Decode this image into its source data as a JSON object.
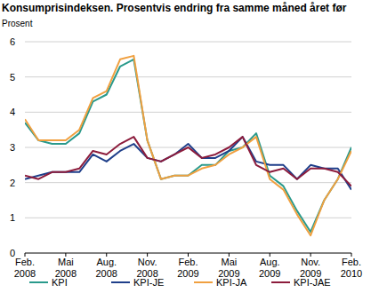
{
  "chart_data": {
    "type": "line",
    "title": "Konsumprisindeksen. Prosentvis endring fra samme måned året før",
    "y_label": "Prosent",
    "categories": [
      "Feb. 2008",
      null,
      null,
      "Mai 2008",
      null,
      null,
      "Aug. 2008",
      null,
      null,
      "Nov. 2008",
      null,
      null,
      "Feb. 2009",
      null,
      null,
      "Mai 2009",
      null,
      null,
      "Aug. 2009",
      null,
      null,
      "Nov. 2009",
      null,
      null,
      "Feb. 2010"
    ],
    "series": [
      {
        "name": "KPI",
        "color": "#2a9a8c",
        "values": [
          3.7,
          3.2,
          3.1,
          3.1,
          3.4,
          4.3,
          4.5,
          5.3,
          5.5,
          3.2,
          2.1,
          2.2,
          2.2,
          2.5,
          2.5,
          2.9,
          3.0,
          3.4,
          2.2,
          1.9,
          1.2,
          0.6,
          1.5,
          2.1,
          3.0
        ]
      },
      {
        "name": "KPI-JE",
        "color": "#1f3f8a",
        "values": [
          2.1,
          2.2,
          2.3,
          2.3,
          2.3,
          2.8,
          2.6,
          2.9,
          3.1,
          2.7,
          2.6,
          2.8,
          3.1,
          2.7,
          2.7,
          2.9,
          3.3,
          2.6,
          2.5,
          2.5,
          2.1,
          2.5,
          2.4,
          2.4,
          1.8
        ]
      },
      {
        "name": "KPI-JA",
        "color": "#f0a040",
        "values": [
          3.8,
          3.2,
          3.2,
          3.2,
          3.5,
          4.4,
          4.6,
          5.5,
          5.6,
          3.2,
          2.1,
          2.2,
          2.2,
          2.4,
          2.5,
          2.8,
          3.0,
          3.3,
          2.1,
          1.8,
          1.1,
          0.5,
          1.5,
          2.1,
          2.9
        ]
      },
      {
        "name": "KPI-JAE",
        "color": "#8c1c3c",
        "values": [
          2.2,
          2.1,
          2.3,
          2.3,
          2.4,
          2.9,
          2.8,
          3.1,
          3.3,
          2.7,
          2.6,
          2.8,
          3.0,
          2.7,
          2.8,
          3.0,
          3.3,
          2.5,
          2.3,
          2.4,
          2.1,
          2.4,
          2.4,
          2.3,
          1.9
        ]
      }
    ],
    "ylim": [
      0,
      6
    ],
    "yticks": [
      0,
      1,
      2,
      3,
      4,
      5,
      6
    ],
    "grid": true,
    "legend": "bottom"
  }
}
